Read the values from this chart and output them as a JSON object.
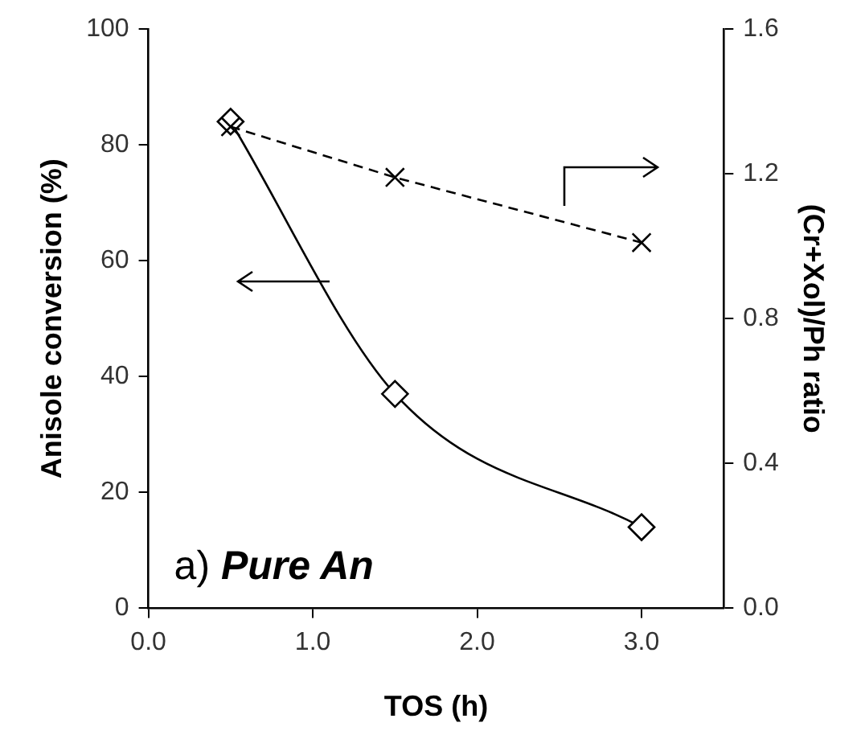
{
  "chart_data": {
    "type": "line",
    "xlabel": "TOS (h)",
    "ylabel": "Anisole conversion (%)",
    "y2label": "(Cr+Xol)/Ph ratio",
    "x": [
      0.5,
      1.5,
      3.0
    ],
    "series": [
      {
        "color": "#000000",
        "values": [
          84,
          37,
          14
        ],
        "marker": "diamond",
        "line_style": "solid"
      },
      {
        "color": "#000000",
        "values": [
          1.33,
          1.19,
          1.01
        ],
        "axis": "y2",
        "marker": "cross",
        "line_style": "dashed"
      }
    ],
    "xlim": [
      0,
      3.5
    ],
    "xticks": [
      {
        "value": 0,
        "label": "0.0"
      },
      {
        "value": 1,
        "label": "1.0"
      },
      {
        "value": 2,
        "label": "2.0"
      },
      {
        "value": 3,
        "label": "3.0"
      }
    ],
    "ylim": [
      0,
      100
    ],
    "yticks": [
      0,
      20,
      40,
      60,
      80,
      100
    ],
    "y2lim": [
      0,
      1.6
    ],
    "y2ticks": [
      {
        "value": 0,
        "label": "0.0"
      },
      {
        "value": 0.4,
        "label": "0.4"
      },
      {
        "value": 0.8,
        "label": "0.8"
      },
      {
        "value": 1.2,
        "label": "1.2"
      },
      {
        "value": 1.6,
        "label": "1.6"
      }
    ],
    "annotations": [
      "a) Pure An"
    ],
    "grid": false,
    "legend": false
  }
}
